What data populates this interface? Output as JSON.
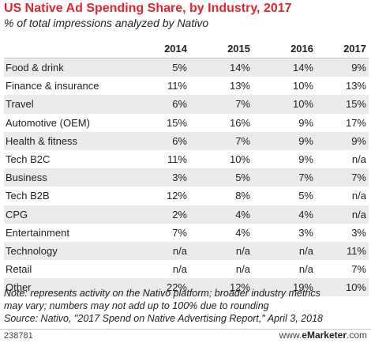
{
  "chart_data": {
    "type": "table",
    "title": "US Native Ad Spending Share, by Industry, 2017",
    "subtitle": "% of total impressions analyzed by Nativo",
    "columns": [
      "2014",
      "2015",
      "2016",
      "2017"
    ],
    "rows": [
      {
        "label": "Food & drink",
        "values": [
          "5%",
          "14%",
          "14%",
          "9%"
        ]
      },
      {
        "label": "Finance & insurance",
        "values": [
          "11%",
          "13%",
          "10%",
          "13%"
        ]
      },
      {
        "label": "Travel",
        "values": [
          "6%",
          "7%",
          "10%",
          "15%"
        ]
      },
      {
        "label": "Automotive (OEM)",
        "values": [
          "15%",
          "16%",
          "9%",
          "17%"
        ]
      },
      {
        "label": "Health & fitness",
        "values": [
          "6%",
          "7%",
          "9%",
          "9%"
        ]
      },
      {
        "label": "Tech B2C",
        "values": [
          "11%",
          "10%",
          "9%",
          "n/a"
        ]
      },
      {
        "label": "Business",
        "values": [
          "3%",
          "5%",
          "7%",
          "7%"
        ]
      },
      {
        "label": "Tech B2B",
        "values": [
          "12%",
          "8%",
          "5%",
          "n/a"
        ]
      },
      {
        "label": "CPG",
        "values": [
          "2%",
          "4%",
          "4%",
          "n/a"
        ]
      },
      {
        "label": "Entertainment",
        "values": [
          "7%",
          "4%",
          "3%",
          "3%"
        ]
      },
      {
        "label": "Technology",
        "values": [
          "n/a",
          "n/a",
          "n/a",
          "11%"
        ]
      },
      {
        "label": "Retail",
        "values": [
          "n/a",
          "n/a",
          "n/a",
          "7%"
        ]
      },
      {
        "label": "Other",
        "values": [
          "22%",
          "12%",
          "19%",
          "10%"
        ]
      }
    ],
    "note_line1": "Note: represents activity on the Nativo platform; broader industry metrics",
    "note_line2": "may vary; numbers may not add up to 100% due to rounding",
    "source": "Source: Nativo, \"2017 Spend on Native Advertising Report,\" April 3, 2018"
  },
  "footer": {
    "id": "238781",
    "brand_prefix": "www.",
    "brand_name": "eMarketer",
    "brand_suffix": ".com"
  },
  "colors": {
    "title": "#e4262c",
    "stripe": "#ebebeb"
  }
}
